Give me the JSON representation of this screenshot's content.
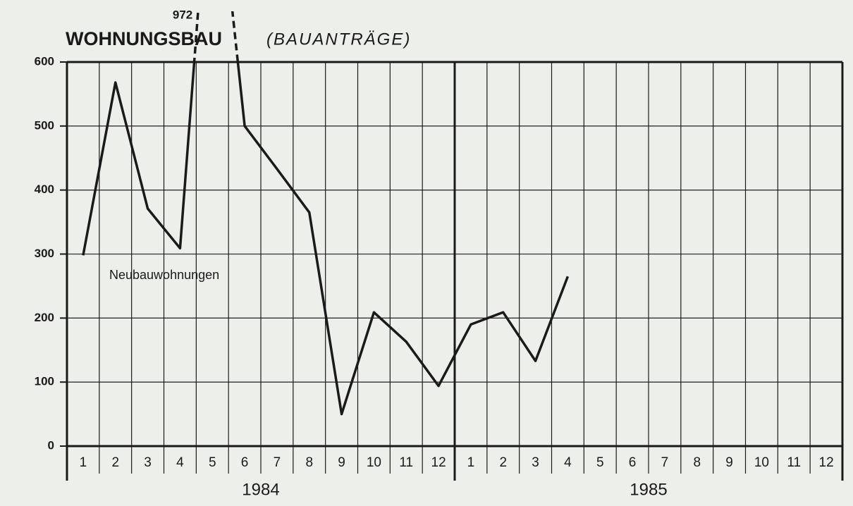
{
  "chart_data": {
    "type": "line",
    "title": "WOHNUNGSBAU",
    "subtitle": "(BAUANTRÄGE)",
    "categories": [
      "1",
      "2",
      "3",
      "4",
      "5",
      "6",
      "7",
      "8",
      "9",
      "10",
      "11",
      "12",
      "1",
      "2",
      "3",
      "4",
      "5",
      "6",
      "7",
      "8",
      "9",
      "10",
      "11",
      "12"
    ],
    "groups": [
      "1984",
      "1985"
    ],
    "series": [
      {
        "name": "Neubauwohnungen",
        "color": "#1a1a1a",
        "values": [
          298,
          568,
          371,
          309,
          972,
          500,
          433,
          365,
          50,
          209,
          163,
          94,
          190,
          209,
          133,
          265,
          null,
          null,
          null,
          null,
          null,
          null,
          null,
          null
        ]
      }
    ],
    "ylim": [
      0,
      600
    ],
    "yticks": [
      0,
      100,
      200,
      300,
      400,
      500,
      600
    ],
    "grid": true
  }
}
